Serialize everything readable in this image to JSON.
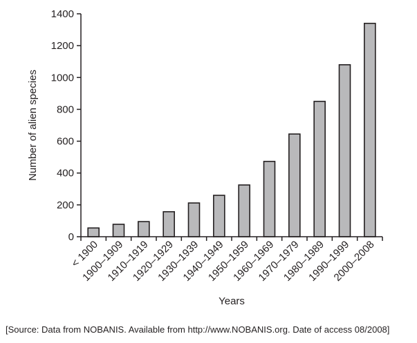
{
  "chart_data": {
    "type": "bar",
    "categories": [
      "< 1900",
      "1900–1909",
      "1910–1919",
      "1920–1929",
      "1930–1939",
      "1940–1949",
      "1950–1959",
      "1960–1969",
      "1970–1979",
      "1980–1989",
      "1990–1999",
      "2000–2008"
    ],
    "values": [
      55,
      78,
      95,
      157,
      212,
      260,
      325,
      473,
      645,
      850,
      1080,
      1340
    ],
    "xlabel": "Years",
    "ylabel": "Number of alien species",
    "ylim": [
      0,
      1400
    ],
    "yticks": [
      0,
      200,
      400,
      600,
      800,
      1000,
      1200,
      1400
    ],
    "grid": false,
    "bar_color": "#b9b9bb",
    "line_color": "#231f20"
  },
  "source_note": "[Source: Data from NOBANIS. Available from http://www.NOBANIS.org. Date of access 08/2008]"
}
